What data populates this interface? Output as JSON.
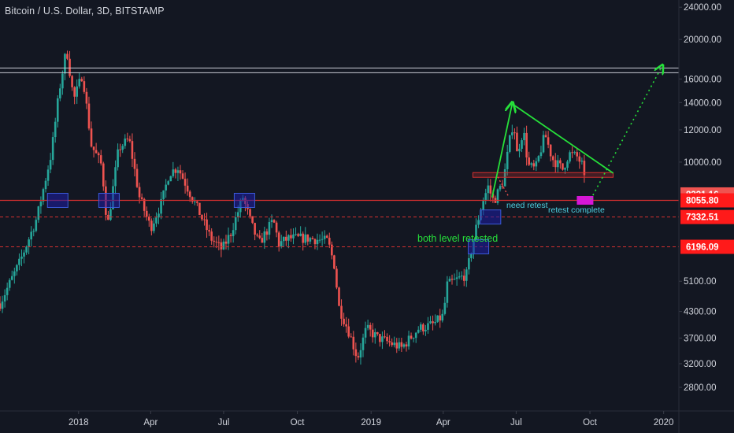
{
  "header": {
    "title": "Bitcoin / U.S. Dollar, 3D, BITSTAMP"
  },
  "colors": {
    "background": "#131722",
    "up": "#26a69a",
    "down": "#ef5350",
    "support": "#d32f2f",
    "annotation_green": "#26e03a",
    "annotation_cyan": "#4dd0e1",
    "box_blue": "#1e1ea8",
    "box_magenta": "#d617d6",
    "price_tag": "#ff1a1a",
    "current_tag": "#ef5350"
  },
  "chart_data": {
    "type": "candlestick",
    "title": "Bitcoin / U.S. Dollar, 3D, BITSTAMP",
    "scale": "log",
    "ylim": [
      2450,
      25000
    ],
    "xlim": [
      "2017-09-25",
      "2020-01-20"
    ],
    "y_ticks": [
      24000,
      20000,
      16000,
      14000,
      12000,
      10000,
      8331.16,
      8055.8,
      7332.51,
      6196.09,
      5100,
      4300,
      3700,
      3200,
      2800
    ],
    "y_tick_labels": [
      "24000.00",
      "20000.00",
      "16000.00",
      "14000.00",
      "12000.00",
      "10000.00",
      "8331.16",
      "8055.80",
      "7332.51",
      "6196.09",
      "5100.00",
      "4300.00",
      "3700.00",
      "3200.00",
      "2800.00"
    ],
    "x_ticks": [
      {
        "date": "2018-01-01",
        "label": "2018"
      },
      {
        "date": "2018-04-01",
        "label": "Apr"
      },
      {
        "date": "2018-07-01",
        "label": "Jul"
      },
      {
        "date": "2018-10-01",
        "label": "Oct"
      },
      {
        "date": "2019-01-01",
        "label": "2019"
      },
      {
        "date": "2019-04-01",
        "label": "Apr"
      },
      {
        "date": "2019-07-01",
        "label": "Jul"
      },
      {
        "date": "2019-10-01",
        "label": "Oct"
      },
      {
        "date": "2020-01-01",
        "label": "2020"
      }
    ],
    "price_path": [
      [
        "2017-09-25",
        4500
      ],
      [
        "2017-10-20",
        5700
      ],
      [
        "2017-11-10",
        7300
      ],
      [
        "2017-11-28",
        10500
      ],
      [
        "2017-12-08",
        15000
      ],
      [
        "2017-12-17",
        19000
      ],
      [
        "2017-12-26",
        14200
      ],
      [
        "2018-01-06",
        16500
      ],
      [
        "2018-01-17",
        11000
      ],
      [
        "2018-01-30",
        9800
      ],
      [
        "2018-02-06",
        6900
      ],
      [
        "2018-02-20",
        10800
      ],
      [
        "2018-03-05",
        11400
      ],
      [
        "2018-03-18",
        8200
      ],
      [
        "2018-04-01",
        6900
      ],
      [
        "2018-04-15",
        8000
      ],
      [
        "2018-04-24",
        9400
      ],
      [
        "2018-05-05",
        9700
      ],
      [
        "2018-05-20",
        8400
      ],
      [
        "2018-06-01",
        7500
      ],
      [
        "2018-06-15",
        6500
      ],
      [
        "2018-06-29",
        6100
      ],
      [
        "2018-07-10",
        6700
      ],
      [
        "2018-07-25",
        8200
      ],
      [
        "2018-08-05",
        7000
      ],
      [
        "2018-08-14",
        6300
      ],
      [
        "2018-09-01",
        7200
      ],
      [
        "2018-09-08",
        6300
      ],
      [
        "2018-09-20",
        6500
      ],
      [
        "2018-10-15",
        6500
      ],
      [
        "2018-11-08",
        6400
      ],
      [
        "2018-11-16",
        5600
      ],
      [
        "2018-11-22",
        4400
      ],
      [
        "2018-12-05",
        3800
      ],
      [
        "2018-12-15",
        3300
      ],
      [
        "2018-12-26",
        3900
      ],
      [
        "2019-01-10",
        3700
      ],
      [
        "2019-02-08",
        3500
      ],
      [
        "2019-03-01",
        3900
      ],
      [
        "2019-03-20",
        4000
      ],
      [
        "2019-04-01",
        4200
      ],
      [
        "2019-04-06",
        5000
      ],
      [
        "2019-04-30",
        5300
      ],
      [
        "2019-05-12",
        6900
      ],
      [
        "2019-05-20",
        8000
      ],
      [
        "2019-05-27",
        8700
      ],
      [
        "2019-06-03",
        8000
      ],
      [
        "2019-06-15",
        9000
      ],
      [
        "2019-06-25",
        12000
      ],
      [
        "2019-06-28",
        12500
      ],
      [
        "2019-07-02",
        10500
      ],
      [
        "2019-07-10",
        12000
      ],
      [
        "2019-07-16",
        9800
      ],
      [
        "2019-07-25",
        9600
      ],
      [
        "2019-08-06",
        11700
      ],
      [
        "2019-08-15",
        10200
      ],
      [
        "2019-08-28",
        9600
      ],
      [
        "2019-09-05",
        10500
      ],
      [
        "2019-09-15",
        10300
      ],
      [
        "2019-09-22",
        9800
      ],
      [
        "2019-09-26",
        8331.16
      ]
    ],
    "horizontal_levels": [
      {
        "price": 16800,
        "style": "double-line",
        "color": "#c8cbd4"
      },
      {
        "price": 9300,
        "style": "box",
        "color": "#d32f2f",
        "from": "2019-05-08",
        "to": "2019-10-30"
      },
      {
        "price": 8055.8,
        "style": "solid",
        "color": "#d32f2f"
      },
      {
        "price": 7332.51,
        "style": "dashed",
        "color": "#d32f2f"
      },
      {
        "price": 6196.09,
        "style": "dashed",
        "color": "#d32f2f"
      }
    ],
    "retest_boxes": [
      {
        "date": "2017-12-06",
        "price": 8055.8,
        "color": "#1e1ea8"
      },
      {
        "date": "2018-02-08",
        "price": 8055.8,
        "color": "#1e1ea8"
      },
      {
        "date": "2018-07-27",
        "price": 8055.8,
        "color": "#1e1ea8"
      },
      {
        "date": "2019-05-30",
        "price": 7332.51,
        "color": "#1e1ea8"
      },
      {
        "date": "2019-05-15",
        "price": 6196.09,
        "color": "#1e1ea8"
      },
      {
        "date": "2019-09-25",
        "price": 8055.8,
        "color": "#d617d6"
      }
    ],
    "trendlines": [
      {
        "from": [
          "2019-06-01",
          8200
        ],
        "to": [
          "2019-06-26",
          13900
        ],
        "style": "arrow",
        "color": "#26e03a"
      },
      {
        "from": [
          "2019-06-26",
          13900
        ],
        "to": [
          "2019-10-30",
          9400
        ],
        "style": "solid",
        "color": "#26e03a"
      },
      {
        "from": [
          "2019-10-02",
          8100
        ],
        "to": [
          "2019-12-30",
          17200
        ],
        "style": "dotted-arrow",
        "color": "#26e03a"
      },
      {
        "from": [
          "2019-06-08",
          9200
        ],
        "to": [
          "2019-06-22",
          8200
        ],
        "style": "dotted",
        "color": "#ef5350"
      }
    ],
    "annotations": [
      {
        "text": "need retest",
        "color": "#4dd0e1"
      },
      {
        "text": "retest complete",
        "color": "#4dd0e1"
      },
      {
        "text": "both level retested",
        "color": "#26e03a"
      }
    ],
    "price_tags": [
      {
        "value": 8331.16,
        "label": "8331.16",
        "color": "#ef5350"
      },
      {
        "value": 8055.8,
        "label": "8055.80",
        "color": "#ff1a1a"
      },
      {
        "value": 7332.51,
        "label": "7332.51",
        "color": "#ff1a1a"
      },
      {
        "value": 6196.09,
        "label": "6196.09",
        "color": "#ff1a1a"
      }
    ]
  }
}
